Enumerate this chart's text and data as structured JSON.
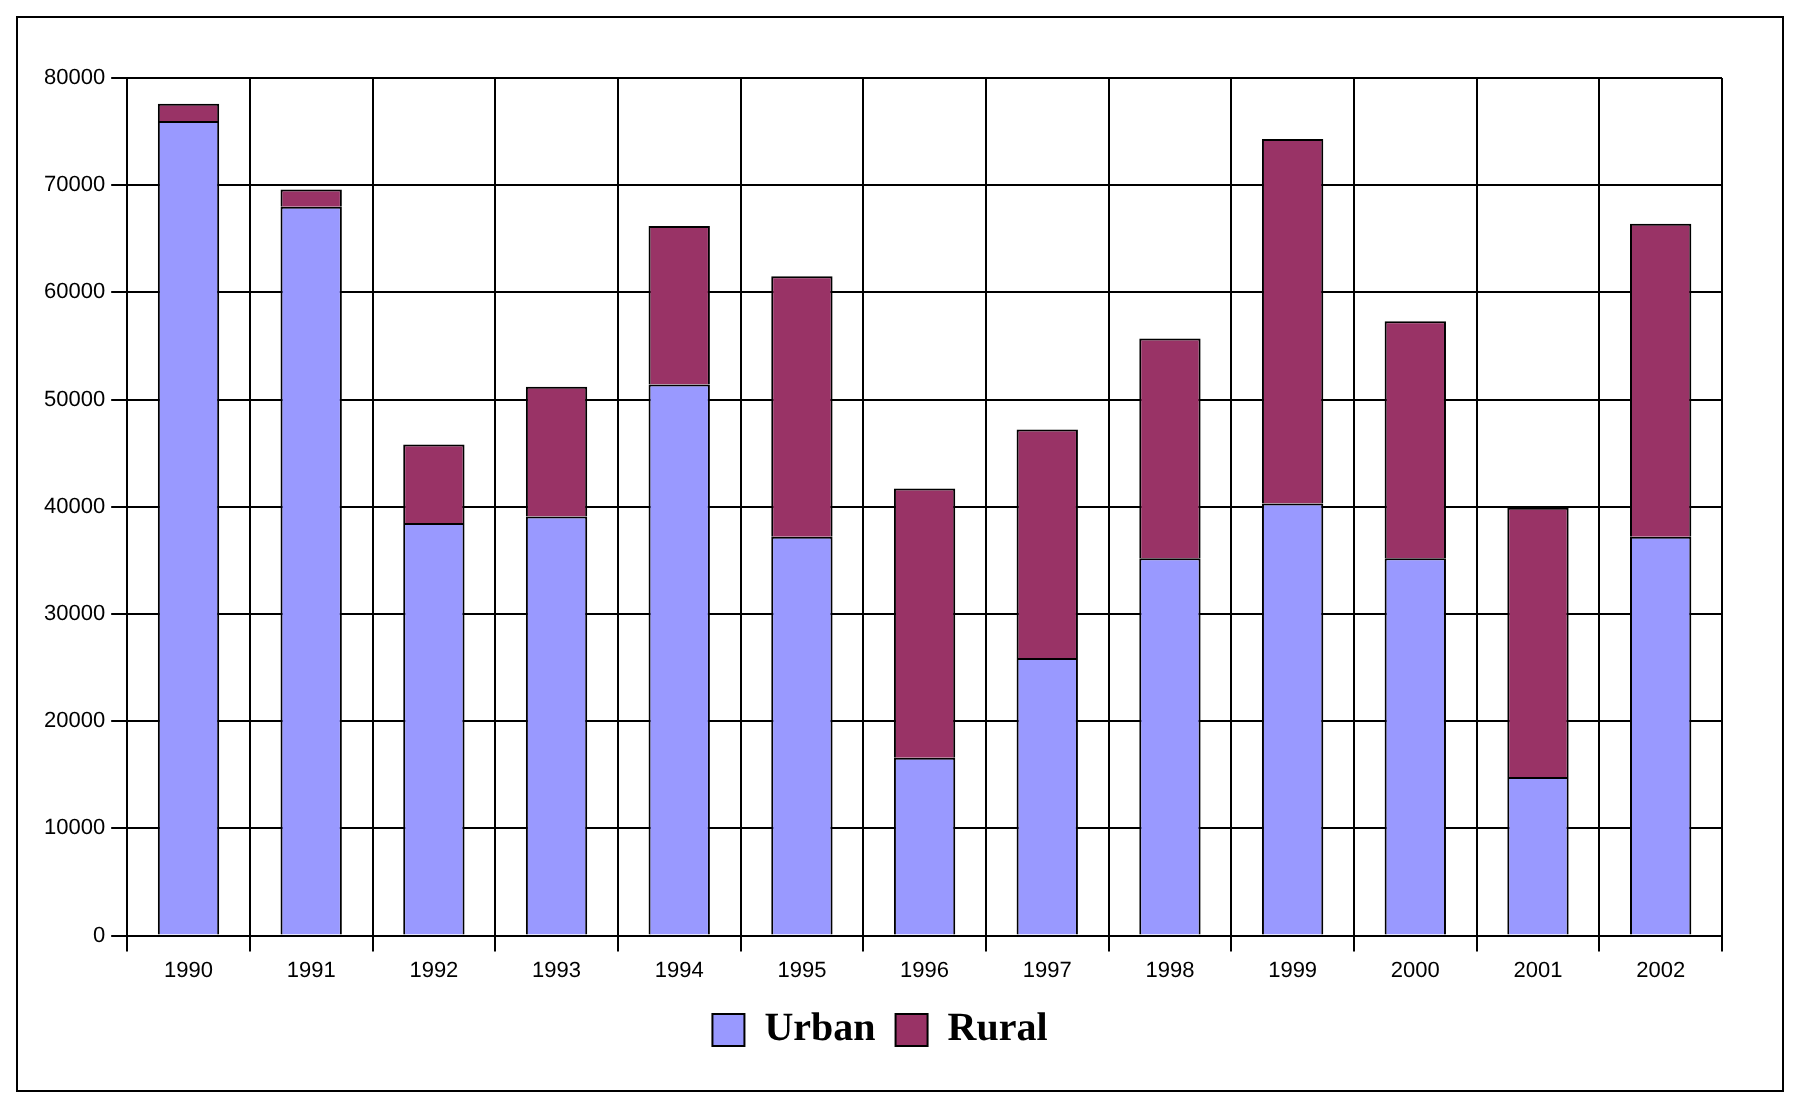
{
  "chart_data": {
    "type": "bar",
    "stacked": true,
    "categories": [
      "1990",
      "1991",
      "1992",
      "1993",
      "1994",
      "1995",
      "1996",
      "1997",
      "1998",
      "1999",
      "2000",
      "2001",
      "2002"
    ],
    "series": [
      {
        "name": "Urban",
        "color": "#9999ff",
        "values": [
          76000,
          68000,
          38500,
          39100,
          51400,
          37200,
          16600,
          25900,
          35200,
          40300,
          35200,
          14800,
          37200
        ]
      },
      {
        "name": "Rural",
        "color": "#993366",
        "values": [
          1600,
          1600,
          7300,
          12100,
          14800,
          24300,
          25100,
          21300,
          20500,
          34000,
          22100,
          25100,
          29200
        ]
      }
    ],
    "ylim": [
      0,
      80000
    ],
    "yticks": [
      0,
      10000,
      20000,
      30000,
      40000,
      50000,
      60000,
      70000,
      80000
    ],
    "grid": true,
    "legend": "bottom"
  }
}
